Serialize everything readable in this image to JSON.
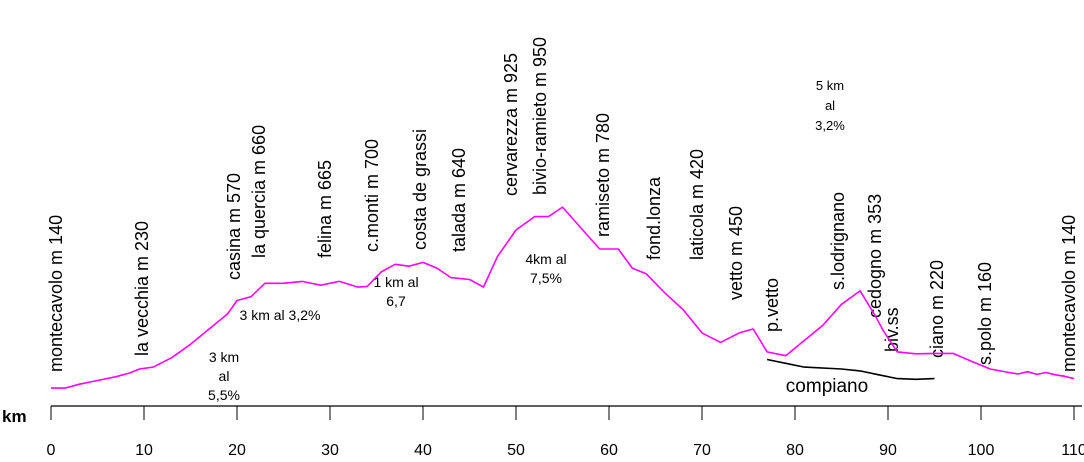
{
  "chart_data": {
    "type": "line",
    "xlabel": "km",
    "xlim": [
      0,
      110
    ],
    "x_ticks": [
      "0",
      "10",
      "20",
      "30",
      "40",
      "50",
      "60",
      "70",
      "80",
      "90",
      "100",
      "110"
    ],
    "colors": {
      "main_route": "#ff00ff",
      "alt_route": "#000000",
      "axis": "#000000"
    },
    "series": [
      {
        "x": [
          0,
          1.5,
          3,
          5,
          7,
          8.5,
          9.5,
          11,
          13,
          15,
          17,
          19,
          20,
          21.5,
          23,
          25,
          27,
          29,
          31,
          33,
          34,
          35.5,
          37,
          38.5,
          40,
          41.5,
          43,
          45,
          46.5,
          48,
          50,
          52,
          53.5,
          55,
          57,
          59,
          61,
          62.5,
          64,
          66,
          68,
          70,
          72,
          74,
          75.5,
          77,
          79,
          81,
          83,
          85,
          87,
          88.5,
          89.5,
          91,
          93,
          95,
          97,
          99,
          101,
          103,
          104,
          105,
          106,
          107,
          108,
          109,
          110
        ],
        "y": [
          155,
          155,
          165,
          175,
          185,
          195,
          205,
          210,
          235,
          270,
          310,
          350,
          385,
          395,
          430,
          430,
          435,
          425,
          435,
          420,
          422,
          460,
          480,
          475,
          485,
          470,
          445,
          440,
          420,
          500,
          570,
          605,
          605,
          630,
          575,
          520,
          520,
          470,
          455,
          405,
          360,
          300,
          275,
          300,
          310,
          250,
          240,
          280,
          320,
          375,
          410,
          350,
          305,
          250,
          245,
          246,
          246,
          225,
          205,
          196,
          192,
          198,
          191,
          196,
          190,
          186,
          180
        ]
      },
      {
        "x": [
          77,
          79,
          81,
          85,
          87,
          89,
          91,
          93,
          95
        ],
        "y": [
          230,
          220,
          210,
          205,
          200,
          190,
          180,
          178,
          180
        ]
      }
    ],
    "places": [
      "montecavolo m 140",
      "la vecchia m 230",
      "casina m 570",
      "la quercia m 660",
      "felina m 665",
      "c.monti m 700",
      "costa de grassi",
      "talada m 640",
      "cervarezza m 925",
      "bivio-ramieto m 950",
      "ramiseto m 780",
      "fond.lonza",
      "laticola m 420",
      "vetto m 450",
      "p.vetto",
      "s.lodrignano",
      "cedogno m 353",
      "biv.ss",
      "ciano m 220",
      "s.polo m 160",
      "montecavolo m 140"
    ],
    "annotations": [
      [
        "3 km",
        "al",
        "5,5%"
      ],
      [
        "3 km  al 3,2%"
      ],
      [
        "1 km  al",
        "6,7"
      ],
      [
        "4km al",
        "7,5%"
      ],
      [
        "5 km",
        "al",
        "3,2%"
      ],
      [
        "compiano"
      ]
    ]
  }
}
